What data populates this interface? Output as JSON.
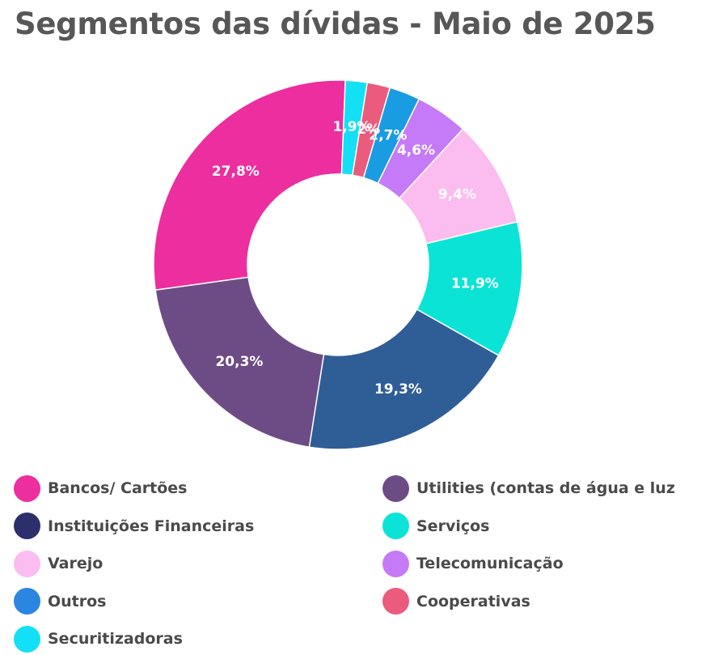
{
  "chart_data": {
    "type": "pie",
    "donut": true,
    "title": "Segmentos das dívidas - Maio de 2025",
    "slices": [
      {
        "name": "Bancos/ Cartões",
        "value": 27.8,
        "label": "27,8%",
        "color": "#EC2E9E"
      },
      {
        "name": "Utilities (contas de água e luz",
        "value": 20.3,
        "label": "20,3%",
        "color": "#6D4C86"
      },
      {
        "name": "Instituições Financeiras",
        "value": 19.3,
        "label": "19,3%",
        "color": "#2F5D96"
      },
      {
        "name": "Serviços",
        "value": 11.9,
        "label": "11,9%",
        "color": "#0BE3D6"
      },
      {
        "name": "Varejo",
        "value": 9.4,
        "label": "9,4%",
        "color": "#FBBCEF"
      },
      {
        "name": "Telecomunicação",
        "value": 4.6,
        "label": "4,6%",
        "color": "#C57AF7"
      },
      {
        "name": "Outros",
        "value": 2.7,
        "label": "2,7%",
        "color": "#1A9CE3"
      },
      {
        "name": "Cooperativas",
        "value": 2.0,
        "label": "2%",
        "color": "#EA5B7E"
      },
      {
        "name": "Securitizadoras",
        "value": 1.9,
        "label": "1,9%",
        "color": "#13E0F5"
      }
    ],
    "legend": {
      "placement": "bottom",
      "columns": 2,
      "items": [
        {
          "label": "Bancos/ Cartões",
          "color": "#EC2E9E"
        },
        {
          "label": "Utilities (contas de água e luz",
          "color": "#6D4C86"
        },
        {
          "label": "Instituições Financeiras",
          "color": "#2C2F6B"
        },
        {
          "label": "Serviços",
          "color": "#0BE3D6"
        },
        {
          "label": "Varejo",
          "color": "#FBBCEF"
        },
        {
          "label": "Telecomunicação",
          "color": "#C57AF7"
        },
        {
          "label": "Outros",
          "color": "#2A86E0"
        },
        {
          "label": "Cooperativas",
          "color": "#EA5B7E"
        },
        {
          "label": "Securitizadoras",
          "color": "#13E0F5"
        }
      ]
    }
  }
}
